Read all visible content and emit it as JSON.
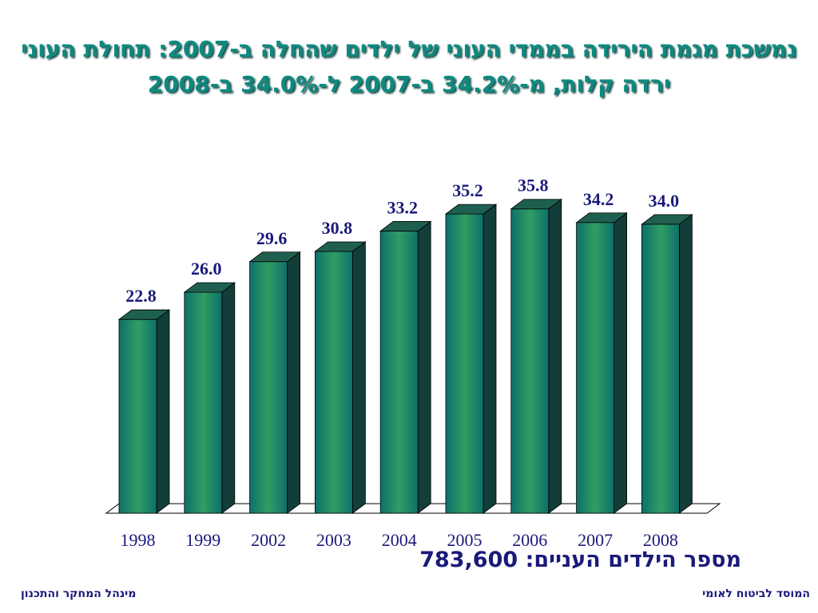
{
  "title": "נמשכת מגמת הירידה בממדי העוני של ילדים שהחלה ב-2007: תחולת העוני ירדה קלות, מ-34.2% ב-2007 ל-34.0% ב-2008",
  "poor_children": {
    "label": "מספר הילדים העניים:",
    "value": "783,600"
  },
  "footer": {
    "right": "המוסד לביטוח לאומי",
    "left": "מינהל המחקר והתכנון"
  },
  "colors": {
    "bar_front_center": "#2f9e63",
    "bar_front_edge": "#0e6f6a",
    "bar_top": "#1f5f4f",
    "bar_side": "#123d38",
    "label": "#1a1a7a",
    "title": "#0d8a80"
  },
  "chart_data": {
    "type": "bar",
    "categories": [
      "1998",
      "1999",
      "2002",
      "2003",
      "2004",
      "2005",
      "2006",
      "2007",
      "2008"
    ],
    "values": [
      22.8,
      26.0,
      29.6,
      30.8,
      33.2,
      35.2,
      35.8,
      34.2,
      34.0
    ],
    "data_labels": [
      "22.8",
      "26.0",
      "29.6",
      "30.8",
      "33.2",
      "35.2",
      "35.8",
      "34.2",
      "34.0"
    ],
    "title": "",
    "xlabel": "",
    "ylabel": "",
    "ylim": [
      0,
      36
    ],
    "grid": false,
    "legend": "none",
    "style": "3d"
  }
}
